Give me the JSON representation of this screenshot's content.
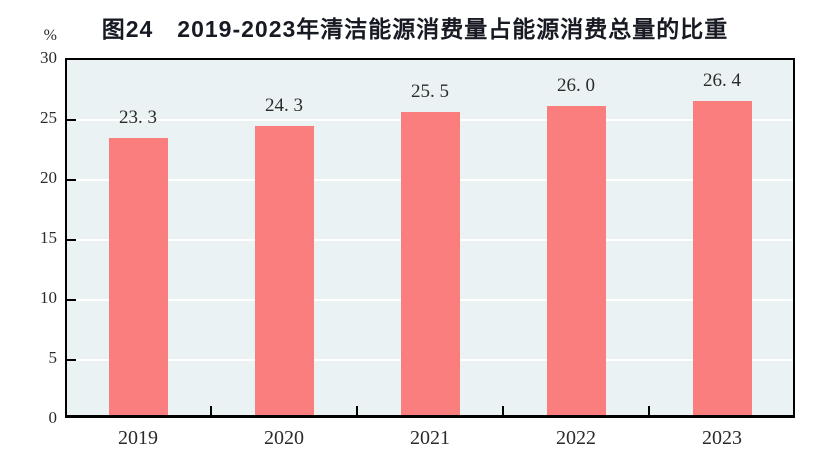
{
  "chart_data": {
    "type": "bar",
    "title": "图24　2019-2023年清洁能源消费量占能源消费总量的比重",
    "unit_label": "%",
    "categories": [
      "2019",
      "2020",
      "2021",
      "2022",
      "2023"
    ],
    "values": [
      23.3,
      24.3,
      25.5,
      26.0,
      26.4
    ],
    "data_labels": [
      "23. 3",
      "24. 3",
      "25. 5",
      "26. 0",
      "26. 4"
    ],
    "ylim": [
      0,
      30
    ],
    "yticks": [
      0,
      5,
      10,
      15,
      20,
      25,
      30
    ],
    "xlabel": "",
    "ylabel": "%",
    "legend": "none",
    "grid": "horizontal-white",
    "colors": {
      "bar": "#FB7E7E",
      "plot_background": "#EAF2F3",
      "gridline": "#FFFFFF",
      "axis": "#000000",
      "title_text": "#171A22",
      "label_text": "#2B2B2B"
    }
  }
}
